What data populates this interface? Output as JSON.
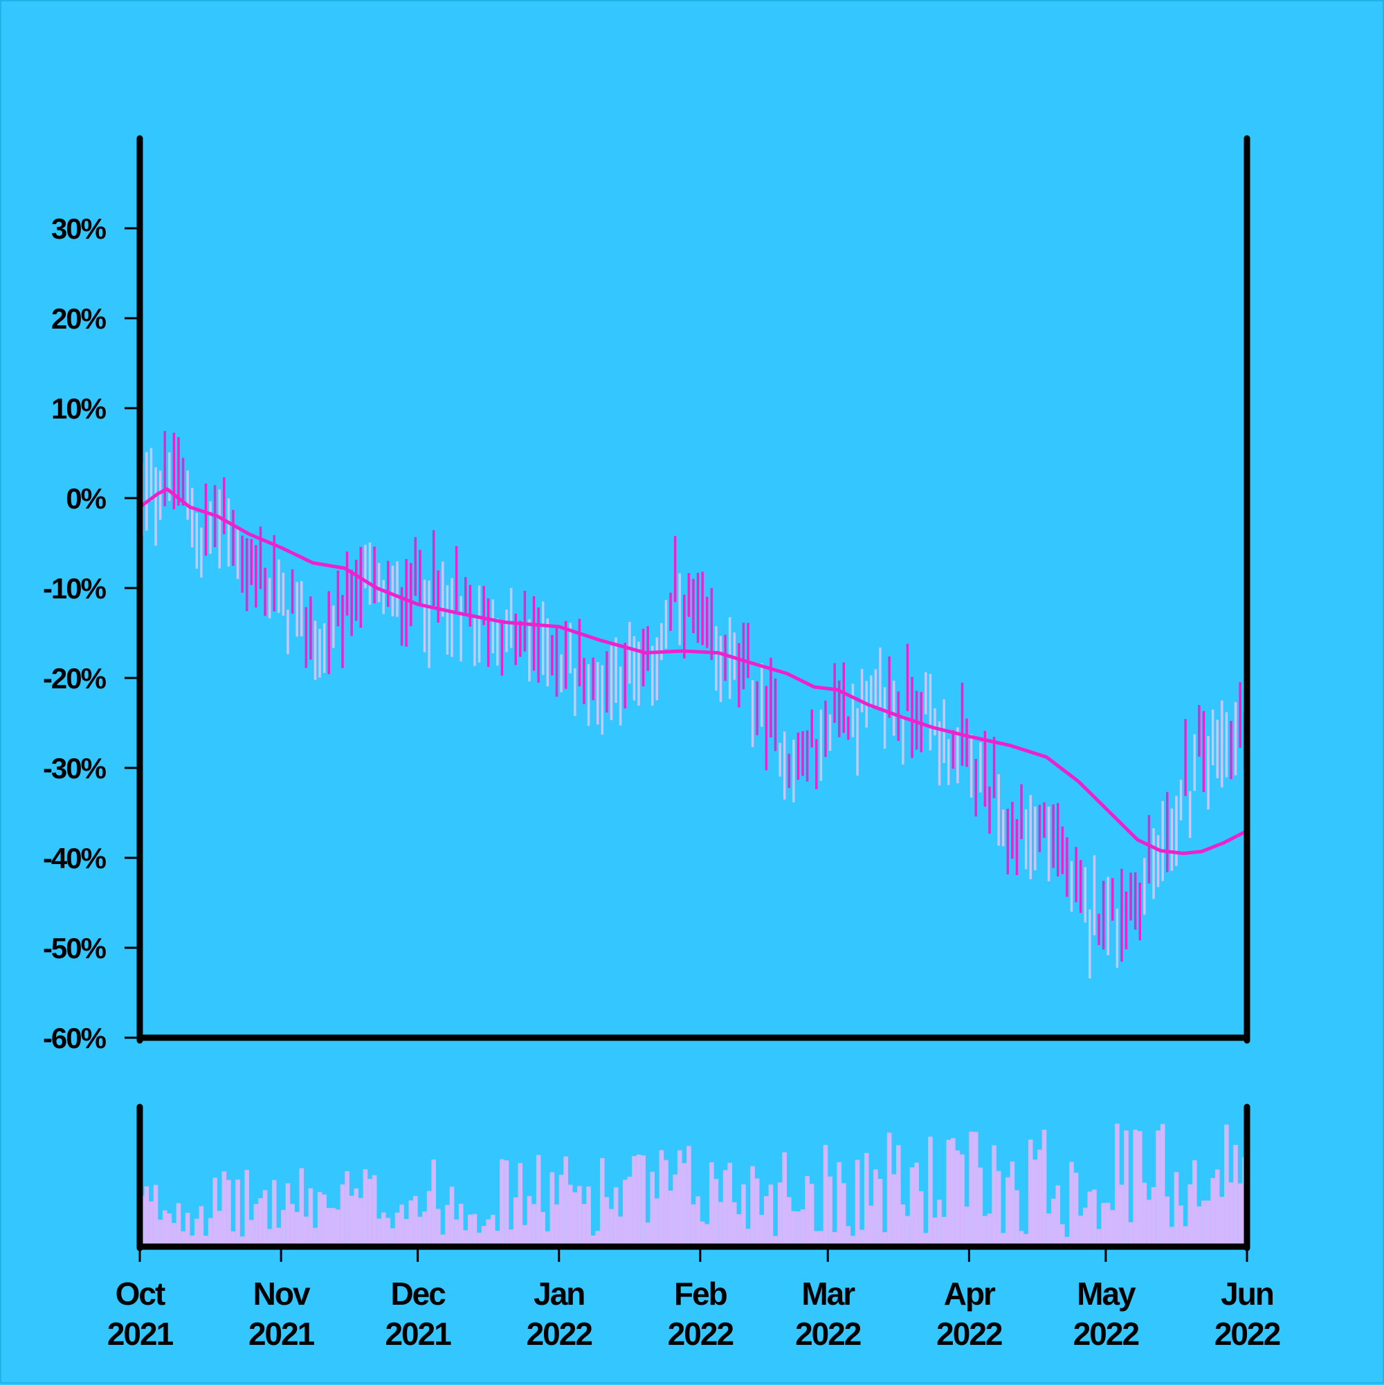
{
  "colors": {
    "background": "#33c6ff",
    "axis": "#000000",
    "bar_up": "#c8c8ff",
    "bar_down": "#ee22cc",
    "moving_average": "#ee22cc",
    "volume": "#d4b8ff"
  },
  "chart_data": {
    "type": "ohlc",
    "title": "",
    "xlabel": "",
    "ylabel": "",
    "y_unit": "%",
    "x_range": [
      "2021-10-01",
      "2022-06-01"
    ],
    "ylim": [
      -60,
      40
    ],
    "y_ticks": [
      {
        "value": 30,
        "label": "30%"
      },
      {
        "value": 20,
        "label": "20%"
      },
      {
        "value": 10,
        "label": "10%"
      },
      {
        "value": 0,
        "label": "0%"
      },
      {
        "value": -10,
        "label": "-10%"
      },
      {
        "value": -20,
        "label": "-20%"
      },
      {
        "value": -30,
        "label": "-30%"
      },
      {
        "value": -40,
        "label": "-40%"
      },
      {
        "value": -50,
        "label": "-50%"
      },
      {
        "value": -60,
        "label": "-60%"
      }
    ],
    "x_ticks": [
      {
        "date": "2021-10-01",
        "month": "Oct",
        "year": "2021"
      },
      {
        "date": "2021-11-01",
        "month": "Nov",
        "year": "2021"
      },
      {
        "date": "2021-12-01",
        "month": "Dec",
        "year": "2021"
      },
      {
        "date": "2022-01-01",
        "month": "Jan",
        "year": "2022"
      },
      {
        "date": "2022-02-01",
        "month": "Feb",
        "year": "2022"
      },
      {
        "date": "2022-03-01",
        "month": "Mar",
        "year": "2022"
      },
      {
        "date": "2022-04-01",
        "month": "Apr",
        "year": "2022"
      },
      {
        "date": "2022-05-01",
        "month": "May",
        "year": "2022"
      },
      {
        "date": "2022-06-01",
        "month": "Jun",
        "year": "2022"
      }
    ],
    "grid": false,
    "price_path": [
      [
        "2021-10-01",
        0
      ],
      [
        "2021-10-06",
        2
      ],
      [
        "2021-10-09",
        2
      ],
      [
        "2021-10-14",
        -4
      ],
      [
        "2021-10-20",
        -2
      ],
      [
        "2021-10-25",
        -9
      ],
      [
        "2021-10-30",
        -10
      ],
      [
        "2021-11-05",
        -13
      ],
      [
        "2021-11-10",
        -17
      ],
      [
        "2021-11-15",
        -13
      ],
      [
        "2021-11-20",
        -8
      ],
      [
        "2021-11-25",
        -12
      ],
      [
        "2021-12-01",
        -10
      ],
      [
        "2021-12-05",
        -11
      ],
      [
        "2021-12-10",
        -13
      ],
      [
        "2021-12-15",
        -14
      ],
      [
        "2021-12-20",
        -15
      ],
      [
        "2021-12-25",
        -16
      ],
      [
        "2021-12-31",
        -17
      ],
      [
        "2022-01-05",
        -19
      ],
      [
        "2022-01-10",
        -21
      ],
      [
        "2022-01-15",
        -18
      ],
      [
        "2022-01-20",
        -21
      ],
      [
        "2022-01-25",
        -13
      ],
      [
        "2022-01-28",
        -12
      ],
      [
        "2022-02-03",
        -17
      ],
      [
        "2022-02-08",
        -18
      ],
      [
        "2022-02-12",
        -21
      ],
      [
        "2022-02-17",
        -26
      ],
      [
        "2022-02-22",
        -30
      ],
      [
        "2022-02-27",
        -28
      ],
      [
        "2022-03-03",
        -23
      ],
      [
        "2022-03-08",
        -24
      ],
      [
        "2022-03-13",
        -22
      ],
      [
        "2022-03-18",
        -24
      ],
      [
        "2022-03-22",
        -23
      ],
      [
        "2022-03-27",
        -27
      ],
      [
        "2022-04-01",
        -29
      ],
      [
        "2022-04-06",
        -34
      ],
      [
        "2022-04-10",
        -38
      ],
      [
        "2022-04-15",
        -36
      ],
      [
        "2022-04-20",
        -38
      ],
      [
        "2022-04-25",
        -46
      ],
      [
        "2022-04-30",
        -45
      ],
      [
        "2022-05-05",
        -47
      ],
      [
        "2022-05-10",
        -42
      ],
      [
        "2022-05-15",
        -37
      ],
      [
        "2022-05-20",
        -31
      ],
      [
        "2022-05-25",
        -27
      ],
      [
        "2022-06-01",
        -27
      ]
    ],
    "moving_average": [
      [
        "2021-10-01",
        -1
      ],
      [
        "2021-10-05",
        0.5
      ],
      [
        "2021-10-07",
        1
      ],
      [
        "2021-10-12",
        -1
      ],
      [
        "2021-10-18",
        -2
      ],
      [
        "2021-10-25",
        -4
      ],
      [
        "2021-11-01",
        -5.5
      ],
      [
        "2021-11-08",
        -7.2
      ],
      [
        "2021-11-15",
        -7.8
      ],
      [
        "2021-11-22",
        -10
      ],
      [
        "2021-12-01",
        -11.8
      ],
      [
        "2021-12-10",
        -12.8
      ],
      [
        "2021-12-20",
        -13.8
      ],
      [
        "2022-01-01",
        -14.3
      ],
      [
        "2022-01-10",
        -15.8
      ],
      [
        "2022-01-20",
        -17.2
      ],
      [
        "2022-01-28",
        -17
      ],
      [
        "2022-02-05",
        -17.2
      ],
      [
        "2022-02-12",
        -18.3
      ],
      [
        "2022-02-20",
        -19.5
      ],
      [
        "2022-02-26",
        -21
      ],
      [
        "2022-03-03",
        -21.3
      ],
      [
        "2022-03-10",
        -23
      ],
      [
        "2022-03-17",
        -24.3
      ],
      [
        "2022-03-24",
        -25.5
      ],
      [
        "2022-04-01",
        -26.5
      ],
      [
        "2022-04-10",
        -27.5
      ],
      [
        "2022-04-18",
        -28.8
      ],
      [
        "2022-04-25",
        -31.5
      ],
      [
        "2022-05-02",
        -35
      ],
      [
        "2022-05-08",
        -38
      ],
      [
        "2022-05-13",
        -39.2
      ],
      [
        "2022-05-18",
        -39.5
      ],
      [
        "2022-05-22",
        -39.3
      ],
      [
        "2022-05-27",
        -38.3
      ],
      [
        "2022-06-01",
        -37
      ]
    ],
    "volume_note_units": "relative"
  }
}
